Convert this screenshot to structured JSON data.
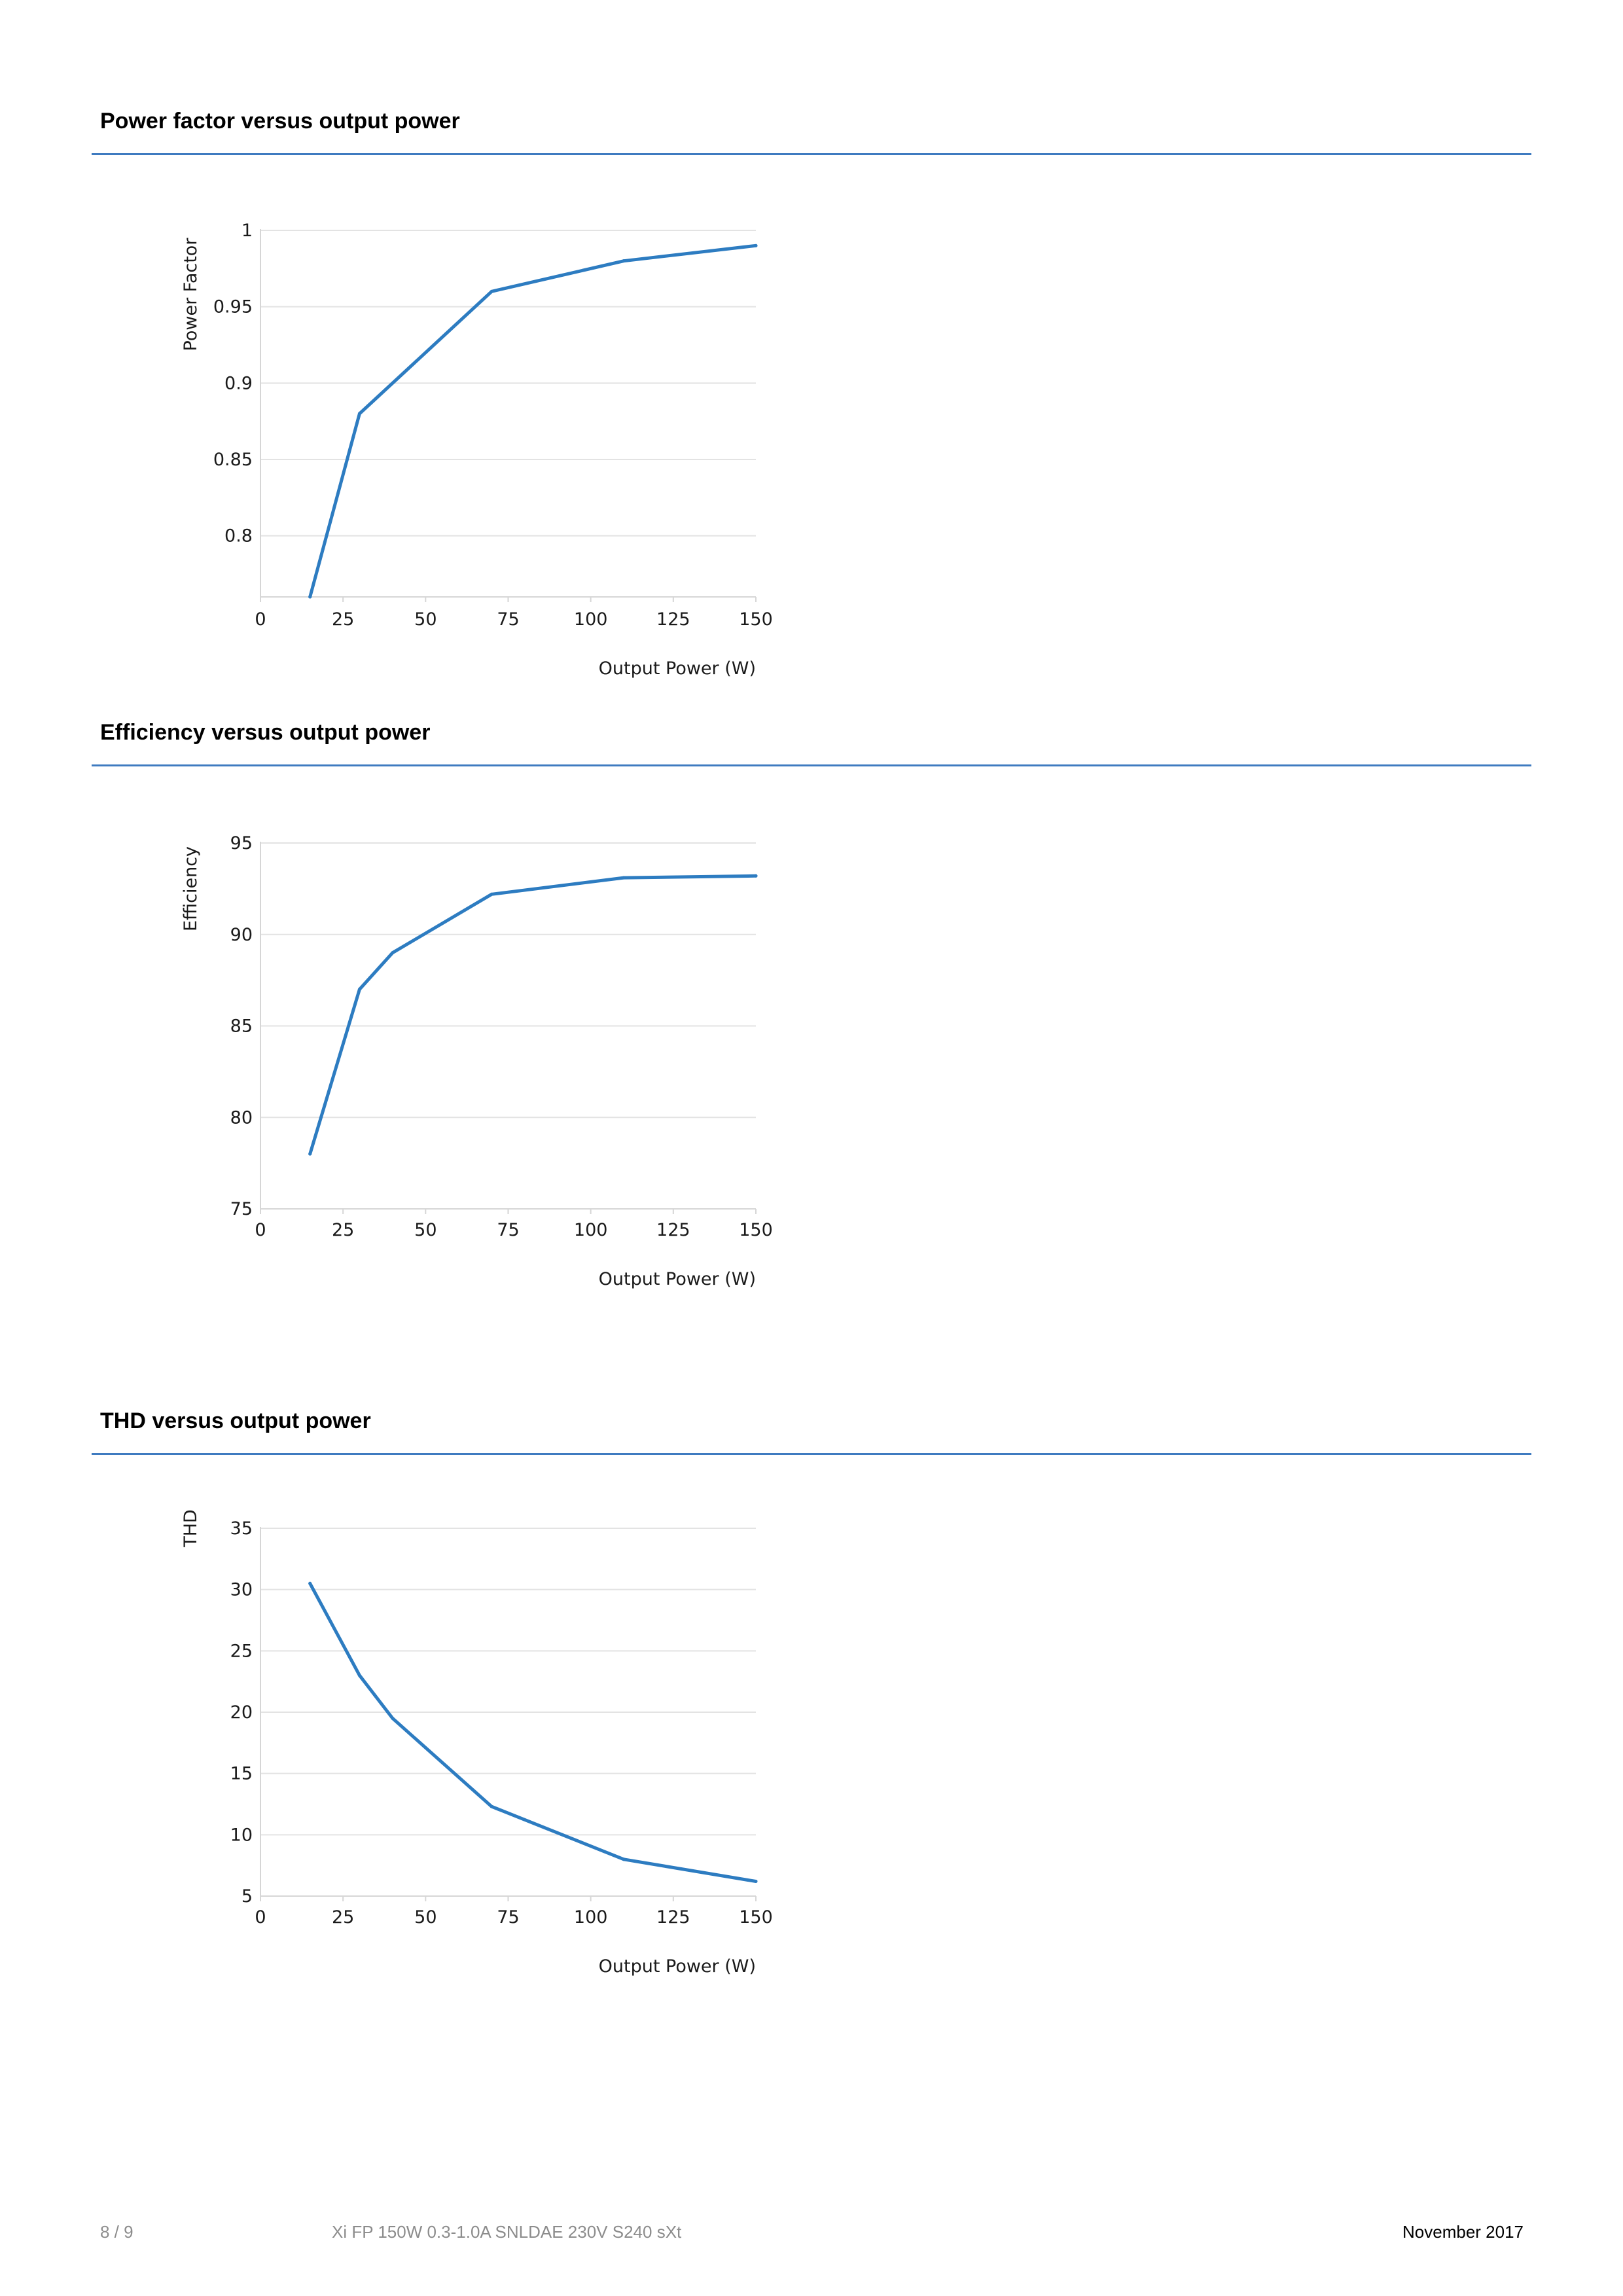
{
  "sections": [
    {
      "heading": "Power factor versus output power",
      "chart_data": {
        "type": "line",
        "title": "",
        "xlabel": "Output Power (W)",
        "ylabel": "Power Factor",
        "xlim": [
          0,
          150
        ],
        "ylim": [
          0.76,
          1.0
        ],
        "xticks": [
          0,
          25,
          50,
          75,
          100,
          125,
          150
        ],
        "xtick_labels": [
          "0",
          "25",
          "50",
          "75",
          "100",
          "125",
          "150"
        ],
        "yticks": [
          0.8,
          0.85,
          0.9,
          0.95,
          1.0
        ],
        "ytick_labels": [
          "0.8",
          "0.85",
          "0.9",
          "0.95",
          "1"
        ],
        "grid": true,
        "color": "#2d7cc1",
        "series": [
          {
            "x": [
              15,
              30,
              70,
              110,
              150
            ],
            "y": [
              0.76,
              0.88,
              0.96,
              0.98,
              0.99
            ]
          }
        ]
      }
    },
    {
      "heading": "Efficiency versus output power",
      "chart_data": {
        "type": "line",
        "title": "",
        "xlabel": "Output Power (W)",
        "ylabel": "Efficiency",
        "xlim": [
          0,
          150
        ],
        "ylim": [
          75,
          95
        ],
        "xticks": [
          0,
          25,
          50,
          75,
          100,
          125,
          150
        ],
        "xtick_labels": [
          "0",
          "25",
          "50",
          "75",
          "100",
          "125",
          "150"
        ],
        "yticks": [
          75,
          80,
          85,
          90,
          95
        ],
        "ytick_labels": [
          "75",
          "80",
          "85",
          "90",
          "95"
        ],
        "grid": true,
        "color": "#2d7cc1",
        "series": [
          {
            "x": [
              15,
              30,
              40,
              70,
              110,
              150
            ],
            "y": [
              78,
              87,
              89,
              92.2,
              93.1,
              93.2
            ]
          }
        ]
      }
    },
    {
      "heading": "THD versus output power",
      "chart_data": {
        "type": "line",
        "title": "",
        "xlabel": "Output Power (W)",
        "ylabel": "THD",
        "xlim": [
          0,
          150
        ],
        "ylim": [
          5,
          35
        ],
        "xticks": [
          0,
          25,
          50,
          75,
          100,
          125,
          150
        ],
        "xtick_labels": [
          "0",
          "25",
          "50",
          "75",
          "100",
          "125",
          "150"
        ],
        "yticks": [
          5,
          10,
          15,
          20,
          25,
          30,
          35
        ],
        "ytick_labels": [
          "5",
          "10",
          "15",
          "20",
          "25",
          "30",
          "35"
        ],
        "grid": true,
        "color": "#2d7cc1",
        "series": [
          {
            "x": [
              15,
              30,
              40,
              70,
              110,
              150
            ],
            "y": [
              30.5,
              23,
              19.5,
              12.3,
              8,
              6.2
            ]
          }
        ]
      }
    }
  ],
  "footer": {
    "page": "8 / 9",
    "product": "Xi FP 150W 0.3-1.0A SNLDAE 230V S240 sXt",
    "date": "November 2017"
  }
}
